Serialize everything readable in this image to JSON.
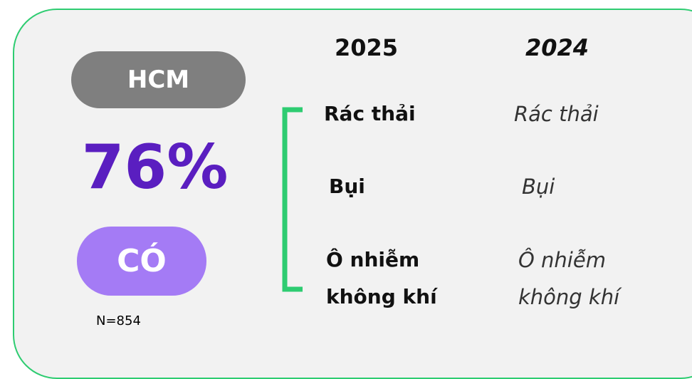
{
  "region": "HCM",
  "percent": "76%",
  "answer": "CÓ",
  "sample": "N=854",
  "columns": [
    {
      "year": "2025",
      "items": [
        "Rác thải",
        "Bụi",
        "Ô nhiễm không khí"
      ]
    },
    {
      "year": "2024",
      "items": [
        "Rác thải",
        "Bụi",
        "Ô nhiễm không khí"
      ]
    }
  ]
}
